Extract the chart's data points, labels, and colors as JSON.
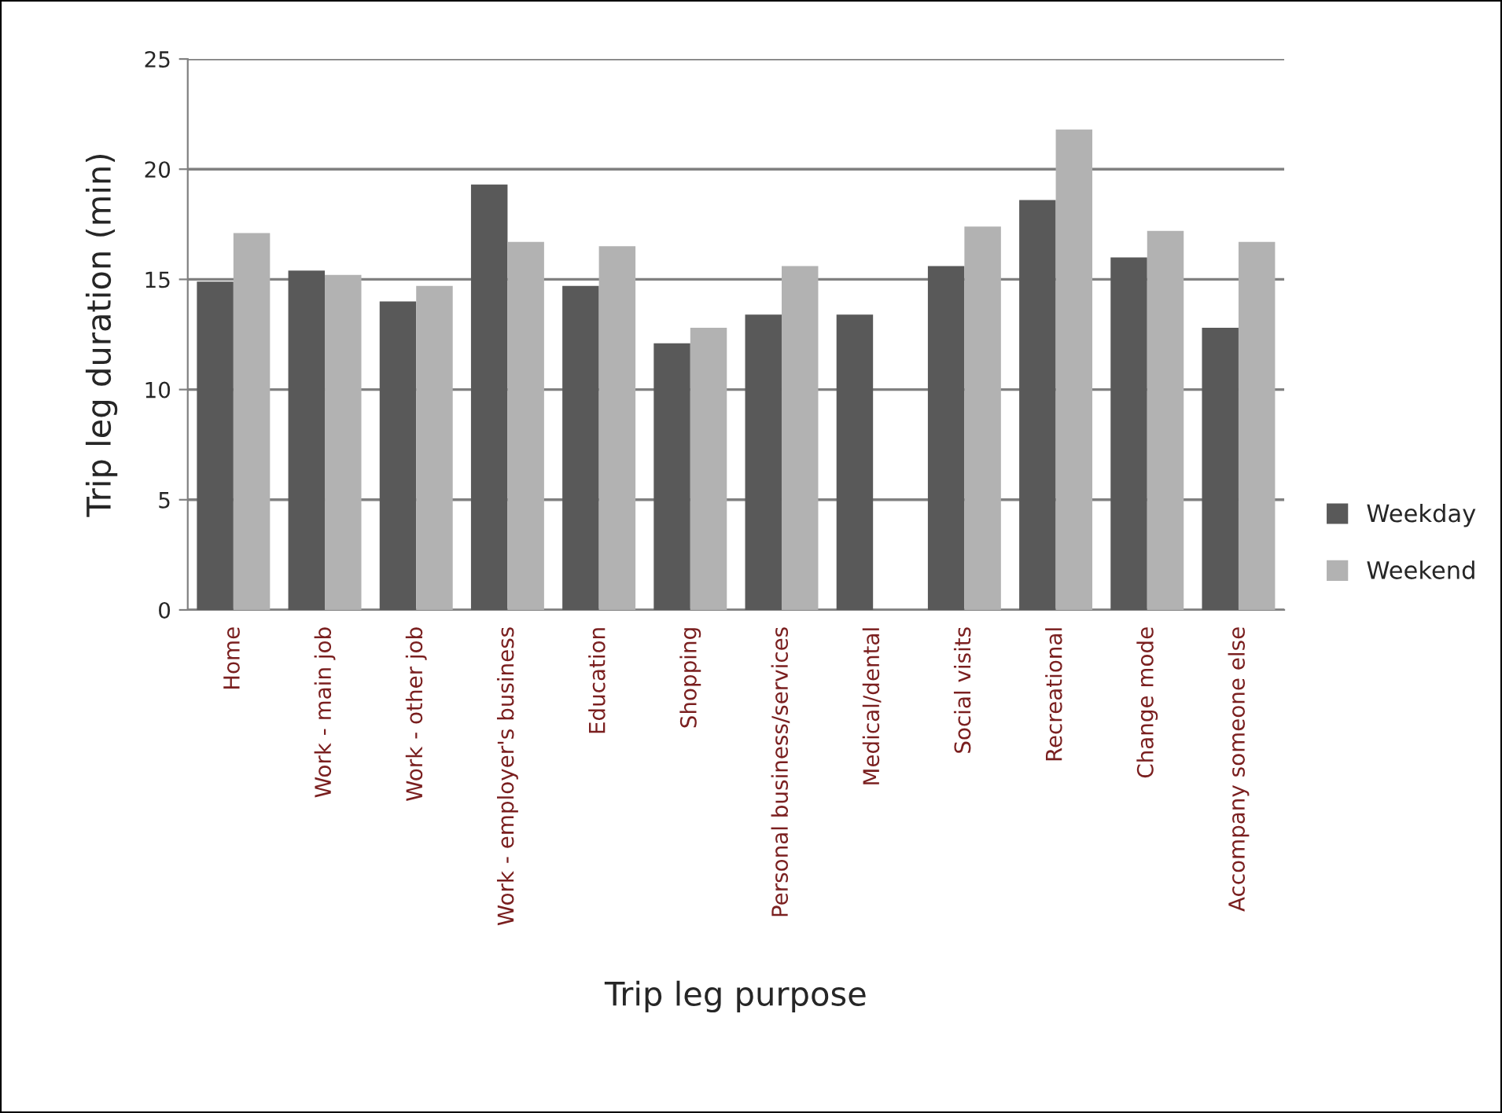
{
  "chart_data": {
    "type": "bar",
    "xlabel": "Trip leg purpose",
    "ylabel": "Trip leg duration (min)",
    "categories": [
      "Home",
      "Work - main job",
      "Work - other job",
      "Work - employer's business",
      "Education",
      "Shopping",
      "Personal business/services",
      "Medical/dental",
      "Social visits",
      "Recreational",
      "Change mode",
      "Accompany someone else"
    ],
    "series": [
      {
        "name": "Weekday",
        "color": "#595959",
        "values": [
          14.9,
          15.4,
          14.0,
          19.3,
          14.7,
          12.1,
          13.4,
          13.4,
          15.6,
          18.6,
          16.0,
          12.8
        ]
      },
      {
        "name": "Weekend",
        "color": "#b2b2b2",
        "values": [
          17.1,
          15.2,
          14.7,
          16.7,
          16.5,
          12.8,
          15.6,
          null,
          17.4,
          21.8,
          17.2,
          16.7
        ]
      }
    ],
    "ylim": [
      0,
      25
    ],
    "yticks": [
      0,
      5,
      10,
      15,
      20,
      25
    ],
    "grid": "y",
    "legend": "right"
  }
}
